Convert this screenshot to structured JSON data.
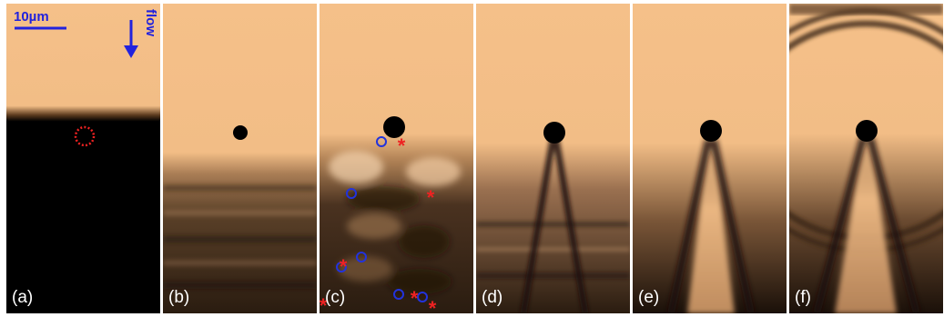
{
  "figure": {
    "panels": [
      {
        "label": "(a)"
      },
      {
        "label": "(b)"
      },
      {
        "label": "(c)"
      },
      {
        "label": "(d)"
      },
      {
        "label": "(e)"
      },
      {
        "label": "(f)"
      }
    ],
    "scale_label": "10µm",
    "flow_label": "flow",
    "colors": {
      "fluid": "#f5c089",
      "dark": "#000000",
      "marker_circle": "#2233dd",
      "marker_star": "#ee2222",
      "annotation": "#2222dd"
    }
  }
}
